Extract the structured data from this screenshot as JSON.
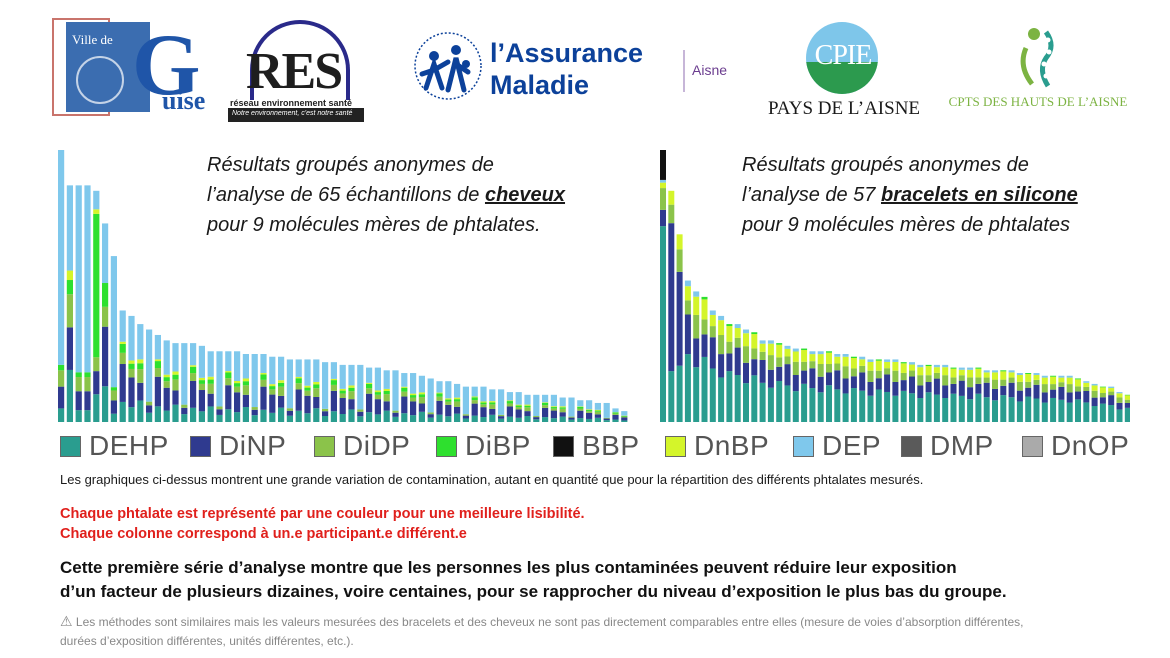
{
  "logos": {
    "guise": {
      "top_text": "Ville de",
      "big_letter": "G",
      "rest": "uise"
    },
    "res": {
      "acronym": "RES",
      "subtitle": "réseau environnement santé",
      "tagline": "Notre environnement, c'est notre santé"
    },
    "assurance_maladie": {
      "line1": "l’Assurance",
      "line2": "Maladie",
      "region": "Aisne"
    },
    "cpie": {
      "letters": "CPIE",
      "name": "PAYS DE L’AISNE"
    },
    "cpts": {
      "name": "CPTS DES HAUTS DE L’AISNE"
    }
  },
  "colors": {
    "DEHP": "#2a9d8f",
    "DiNP": "#2f3a8f",
    "DiDP": "#8bc34a",
    "DiBP": "#2ee02e",
    "BBP": "#111111",
    "DnBP": "#d4f52a",
    "DEP": "#7fc8ec",
    "DMP": "#5a5a5a",
    "DnOP": "#aaaaaa"
  },
  "chart_data": [
    {
      "type": "bar",
      "stacked": true,
      "title_lines": [
        [
          {
            "text": "Résultats groupés anonymes de",
            "bold": false
          }
        ],
        [
          {
            "text": "l’analyse de 65 échantillons de ",
            "bold": false
          },
          {
            "text": "cheveux",
            "bold": true
          }
        ],
        [
          {
            "text": "pour 9 molécules mères de phtalates.",
            "bold": false
          }
        ]
      ],
      "num_columns": 65,
      "totals": [
        100,
        87,
        87,
        87,
        85,
        73,
        61,
        41,
        39,
        36,
        34,
        32,
        30,
        29,
        29,
        29,
        28,
        26,
        26,
        26,
        26,
        25,
        25,
        25,
        24,
        24,
        23,
        23,
        23,
        23,
        22,
        22,
        21,
        21,
        21,
        20,
        20,
        19,
        19,
        18,
        18,
        17,
        16,
        15,
        15,
        14,
        13,
        13,
        13,
        12,
        12,
        11,
        11,
        10,
        10,
        10,
        10,
        9,
        9,
        8,
        8,
        7,
        7,
        5,
        4
      ],
      "ylim": [
        0,
        100
      ]
    },
    {
      "type": "bar",
      "stacked": true,
      "title_lines": [
        [
          {
            "text": "Résultats groupés anonymes de",
            "bold": false
          }
        ],
        [
          {
            "text": "l’analyse de 57 ",
            "bold": false
          },
          {
            "text": "bracelets en silicone",
            "bold": true
          }
        ],
        [
          {
            "text": "pour 9 molécules mères de phtalates",
            "bold": false
          }
        ]
      ],
      "num_columns": 57,
      "totals": [
        100,
        85,
        69,
        52,
        48,
        46,
        41,
        39,
        36,
        36,
        34,
        33,
        30,
        30,
        29,
        28,
        27,
        27,
        26,
        26,
        26,
        25,
        25,
        24,
        24,
        23,
        23,
        23,
        23,
        22,
        22,
        21,
        21,
        21,
        21,
        20,
        20,
        20,
        20,
        19,
        19,
        19,
        19,
        18,
        18,
        18,
        17,
        17,
        17,
        17,
        16,
        15,
        14,
        13,
        13,
        11,
        10
      ],
      "ylim": [
        0,
        100
      ]
    }
  ],
  "legend": [
    "DEHP",
    "DiNP",
    "DiDP",
    "DiBP",
    "BBP",
    "DnBP",
    "DEP",
    "DMP",
    "DnOP"
  ],
  "text": {
    "note": "Les graphiques ci-dessus montrent une grande variation de contamination,  autant en quantité que pour la répartition des différents phtalates mesurés.",
    "red1": "Chaque phtalate est représenté par une couleur pour une meilleure lisibilité.",
    "red2": "Chaque colonne correspond  à un.e participant.e  différent.e",
    "conclusion1": "Cette première série d’analyse montre que les personnes les plus contaminées peuvent réduire leur exposition",
    "conclusion2": "d’un facteur de plusieurs dizaines, voire centaines, pour se rapprocher du niveau d’exposition le plus bas du groupe.",
    "warning_icon": "⚠",
    "warning1": "Les méthodes sont similaires mais les valeurs mesurées des bracelets et des cheveux ne sont pas directement comparables entre elles (mesure de voies d’absorption différentes,",
    "warning2": "durées d’exposition différentes, unités différentes, etc.)."
  }
}
